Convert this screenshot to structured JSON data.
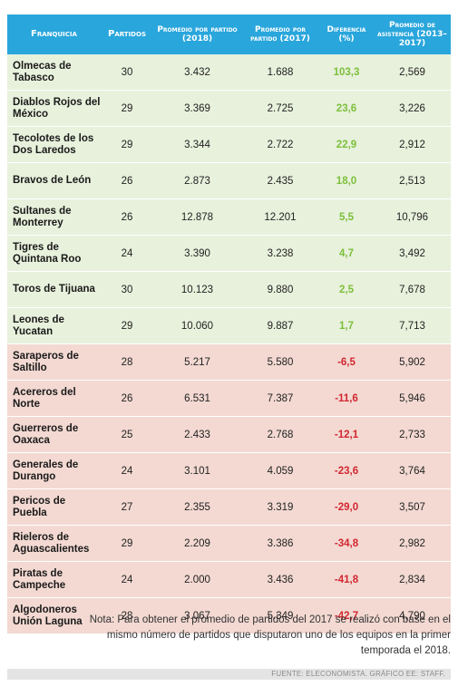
{
  "chart_data": {
    "type": "table",
    "columns": [
      "Franquicia",
      "Partidos",
      "Promedio por partido (2018)",
      "Promedio por partido (2017)",
      "Diferencia (%)",
      "Promedio de asistencia (2013–2017)"
    ],
    "rows": [
      {
        "franquicia": "Olmecas de Tabasco",
        "partidos": "30",
        "prom_2018": "3.432",
        "prom_2017": "1.688",
        "diferencia": "103,3",
        "asistencia": "2,569"
      },
      {
        "franquicia": "Diablos Rojos del México",
        "partidos": "29",
        "prom_2018": "3.369",
        "prom_2017": "2.725",
        "diferencia": "23,6",
        "asistencia": "3,226"
      },
      {
        "franquicia": "Tecolotes de los Dos Laredos",
        "partidos": "29",
        "prom_2018": "3.344",
        "prom_2017": "2.722",
        "diferencia": "22,9",
        "asistencia": "2,912"
      },
      {
        "franquicia": "Bravos de León",
        "partidos": "26",
        "prom_2018": "2.873",
        "prom_2017": "2.435",
        "diferencia": "18,0",
        "asistencia": "2,513"
      },
      {
        "franquicia": "Sultanes de Monterrey",
        "partidos": "26",
        "prom_2018": "12.878",
        "prom_2017": "12.201",
        "diferencia": "5,5",
        "asistencia": "10,796"
      },
      {
        "franquicia": "Tigres de Quintana Roo",
        "partidos": "24",
        "prom_2018": "3.390",
        "prom_2017": "3.238",
        "diferencia": "4,7",
        "asistencia": "3,492"
      },
      {
        "franquicia": "Toros de Tijuana",
        "partidos": "30",
        "prom_2018": "10.123",
        "prom_2017": "9.880",
        "diferencia": "2,5",
        "asistencia": "7,678"
      },
      {
        "franquicia": "Leones de Yucatan",
        "partidos": "29",
        "prom_2018": "10.060",
        "prom_2017": "9.887",
        "diferencia": "1,7",
        "asistencia": "7,713"
      },
      {
        "franquicia": "Saraperos de Saltillo",
        "partidos": "28",
        "prom_2018": "5.217",
        "prom_2017": "5.580",
        "diferencia": "-6,5",
        "asistencia": "5,902"
      },
      {
        "franquicia": "Acereros del Norte",
        "partidos": "26",
        "prom_2018": "6.531",
        "prom_2017": "7.387",
        "diferencia": "-11,6",
        "asistencia": "5,946"
      },
      {
        "franquicia": "Guerreros de Oaxaca",
        "partidos": "25",
        "prom_2018": "2.433",
        "prom_2017": "2.768",
        "diferencia": "-12,1",
        "asistencia": "2,733"
      },
      {
        "franquicia": "Generales de Durango",
        "partidos": "24",
        "prom_2018": "3.101",
        "prom_2017": "4.059",
        "diferencia": "-23,6",
        "asistencia": "3,764"
      },
      {
        "franquicia": "Pericos de Puebla",
        "partidos": "27",
        "prom_2018": "2.355",
        "prom_2017": "3.319",
        "diferencia": "-29,0",
        "asistencia": "3,507"
      },
      {
        "franquicia": "Rieleros de Aguascalientes",
        "partidos": "29",
        "prom_2018": "2.209",
        "prom_2017": "3.386",
        "diferencia": "-34,8",
        "asistencia": "2,982"
      },
      {
        "franquicia": "Piratas de Campeche",
        "partidos": "24",
        "prom_2018": "2.000",
        "prom_2017": "3.436",
        "diferencia": "-41,8",
        "asistencia": "2,834"
      },
      {
        "franquicia": "Algodoneros Unión Laguna",
        "partidos": "28",
        "prom_2018": "3.067",
        "prom_2017": "5.349",
        "diferencia": "-42,7",
        "asistencia": "4,790"
      }
    ]
  },
  "header": {
    "franquicia": "Franquicia",
    "partidos": "Partidos",
    "prom_2018": "Promedio por partido (2018)",
    "prom_2017": "Promedio por partido (2017)",
    "diferencia": "Diferencia (%)",
    "asistencia": "Promedio de asistencia (2013–2017)"
  },
  "colors": {
    "header_bg": "#29a6dc",
    "positive_row": "#e8f1dc",
    "negative_row": "#f3d9d2",
    "positive_text": "#7cbf3b",
    "negative_text": "#d2262f"
  },
  "note": "Nota: Para obtener el promedio de partidos del 2017 se realizó con base en el mismo número de partidos que  disputaron uno de los equipos en la primer temporada el 2018.",
  "source": "FUENTE: ELECONOMISTA. GRÁFICO EE: STAFF."
}
